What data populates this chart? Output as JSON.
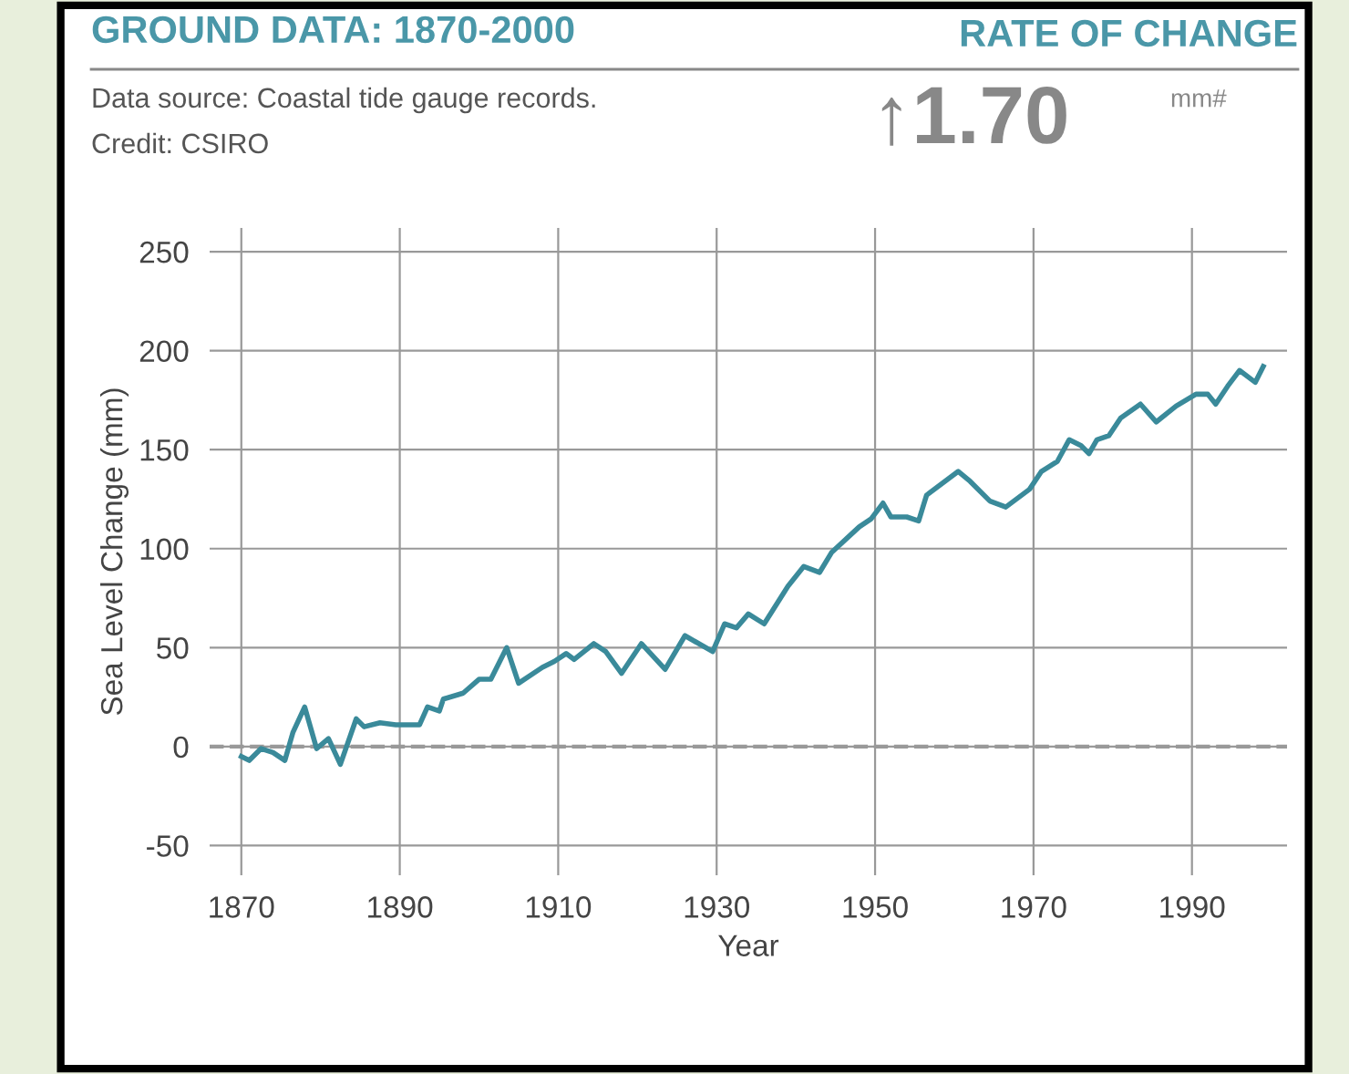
{
  "chart_data": {
    "type": "line",
    "title": "GROUND DATA: 1870-2000",
    "xlabel": "Year",
    "ylabel": "Sea Level Change (mm)",
    "annotations": [
      "Data source: Coastal tide gauge records.",
      "Credit: CSIRO",
      "RATE OF CHANGE",
      "↑1.70",
      "mm#"
    ],
    "series": [
      {
        "color": "#3a8a9a",
        "x": [
          1870,
          1871,
          1872.5,
          1874,
          1875.5,
          1876.5,
          1878,
          1879.5,
          1881,
          1882.5,
          1884.5,
          1885.5,
          1887.5,
          1889.5,
          1892.5,
          1893.5,
          1895,
          1895.5,
          1898,
          1900,
          1901.5,
          1903.5,
          1905,
          1908,
          1909.5,
          1911,
          1912,
          1914.5,
          1916,
          1918,
          1920.5,
          1923.5,
          1926,
          1929.5,
          1931,
          1932.5,
          1934,
          1936,
          1939,
          1941,
          1943,
          1944.5,
          1948,
          1949.5,
          1951,
          1952,
          1954,
          1955.5,
          1956.5,
          1960.5,
          1962,
          1964.5,
          1966.5,
          1969.5,
          1971,
          1973,
          1974.5,
          1976,
          1977,
          1978,
          1979.5,
          1981,
          1983.5,
          1985.5,
          1988,
          1990.5,
          1992,
          1993,
          1994.5,
          1996,
          1998,
          1999
        ],
        "values": [
          -5,
          -7,
          -1,
          -3,
          -7,
          7,
          20,
          -1,
          4,
          -9,
          14,
          10,
          12,
          11,
          11,
          20,
          18,
          24,
          27,
          34,
          34,
          50,
          32,
          40,
          43,
          47,
          44,
          52,
          48,
          37,
          52,
          39,
          56,
          48,
          62,
          60,
          67,
          62,
          81,
          91,
          88,
          98,
          111,
          115,
          123,
          116,
          116,
          114,
          127,
          139,
          134,
          124,
          121,
          130,
          139,
          144,
          155,
          152,
          148,
          155,
          157,
          166,
          173,
          164,
          172,
          178,
          178,
          173,
          182,
          190,
          184,
          192
        ]
      }
    ],
    "xlim": [
      1866,
      2002
    ],
    "ylim": [
      -65,
      262
    ],
    "xticks": [
      1870,
      1890,
      1910,
      1930,
      1950,
      1970,
      1990
    ],
    "yticks": [
      -50,
      0,
      50,
      100,
      150,
      200,
      250
    ],
    "grid": true,
    "marker": "none",
    "line_style": "solid",
    "ref_lines": [
      {
        "axis": "y",
        "value": 0,
        "color": "#999999",
        "line_style": "dashed"
      }
    ]
  }
}
